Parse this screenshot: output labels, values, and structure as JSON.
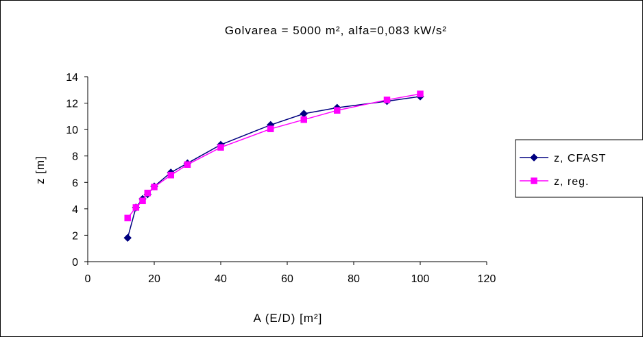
{
  "chart_data": {
    "type": "line",
    "title": "Golvarea = 5000 m², alfa=0,083 kW/s²",
    "xlabel": "A (E/D) [m²]",
    "ylabel": "z [m]",
    "xlim": [
      0,
      120
    ],
    "ylim": [
      0,
      14
    ],
    "xticks": [
      "0",
      "20",
      "40",
      "60",
      "80",
      "100",
      "120"
    ],
    "yticks": [
      "0",
      "2",
      "4",
      "6",
      "8",
      "10",
      "12",
      "14"
    ],
    "grid": false,
    "legend_position": "right",
    "series": [
      {
        "name": "z, CFAST",
        "color": "#000080",
        "marker": "diamond",
        "x": [
          12,
          14.5,
          16.5,
          18,
          20,
          25,
          30,
          40,
          55,
          65,
          75,
          90,
          100
        ],
        "y": [
          1.8,
          4.1,
          4.75,
          5.1,
          5.7,
          6.75,
          7.45,
          8.85,
          10.35,
          11.2,
          11.65,
          12.15,
          12.5
        ]
      },
      {
        "name": "z, reg.",
        "color": "#ff00ff",
        "marker": "square",
        "x": [
          12,
          14.5,
          16.5,
          18,
          20,
          25,
          30,
          40,
          55,
          65,
          75,
          90,
          100
        ],
        "y": [
          3.3,
          4.1,
          4.6,
          5.2,
          5.65,
          6.55,
          7.35,
          8.65,
          10.05,
          10.75,
          11.45,
          12.25,
          12.7
        ]
      }
    ]
  }
}
